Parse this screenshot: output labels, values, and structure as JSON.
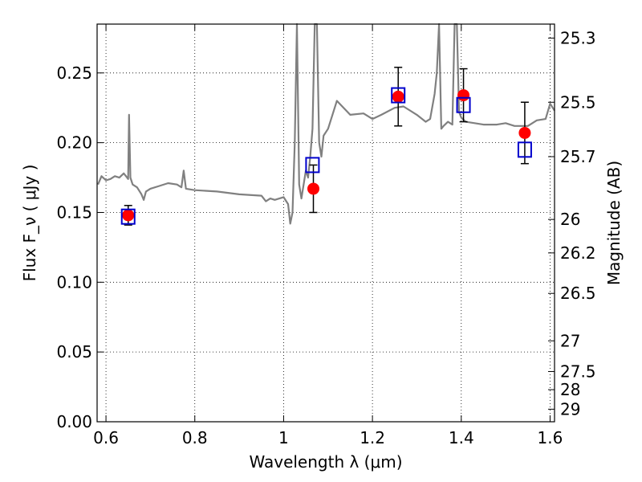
{
  "chart_data": {
    "type": "scatter",
    "title": "",
    "xlabel": "Wavelength  λ (μm)",
    "ylabel": "Flux  F_ν  ( μJy )",
    "ylabel_right": "Magnitude (AB)",
    "xlim": [
      0.58,
      1.61
    ],
    "ylim": [
      0.0,
      0.285
    ],
    "grid": true,
    "grid_style": "dotted",
    "x_ticks": [
      {
        "value": 0.6,
        "label": "0.6"
      },
      {
        "value": 0.8,
        "label": "0.8"
      },
      {
        "value": 1.0,
        "label": "1"
      },
      {
        "value": 1.2,
        "label": "1.2"
      },
      {
        "value": 1.4,
        "label": "1.4"
      },
      {
        "value": 1.6,
        "label": "1.6"
      }
    ],
    "y_ticks": [
      {
        "value": 0.0,
        "label": "0.00"
      },
      {
        "value": 0.05,
        "label": "0.05"
      },
      {
        "value": 0.1,
        "label": "0.10"
      },
      {
        "value": 0.15,
        "label": "0.15"
      },
      {
        "value": 0.2,
        "label": "0.20"
      },
      {
        "value": 0.25,
        "label": "0.25"
      }
    ],
    "y2_ticks": [
      {
        "flux": 0.275,
        "label": "25.3"
      },
      {
        "flux": 0.229,
        "label": "25.5"
      },
      {
        "flux": 0.19,
        "label": "25.7"
      },
      {
        "flux": 0.145,
        "label": "26"
      },
      {
        "flux": 0.121,
        "label": "26.2"
      },
      {
        "flux": 0.092,
        "label": "26.5"
      },
      {
        "flux": 0.058,
        "label": "27"
      },
      {
        "flux": 0.036,
        "label": "27.5"
      },
      {
        "flux": 0.023,
        "label": "28"
      },
      {
        "flux": 0.009,
        "label": "29"
      }
    ],
    "series": [
      {
        "type": "line",
        "color": "#808080",
        "x": [
          0.582,
          0.59,
          0.6,
          0.61,
          0.62,
          0.63,
          0.64,
          0.645,
          0.65,
          0.652,
          0.655,
          0.66,
          0.67,
          0.68,
          0.685,
          0.69,
          0.7,
          0.72,
          0.74,
          0.76,
          0.77,
          0.775,
          0.78,
          0.8,
          0.85,
          0.9,
          0.95,
          0.96,
          0.97,
          0.98,
          1.0,
          1.01,
          1.015,
          1.02,
          1.025,
          1.03,
          1.035,
          1.04,
          1.05,
          1.055,
          1.06,
          1.065,
          1.07,
          1.075,
          1.08,
          1.085,
          1.09,
          1.1,
          1.12,
          1.15,
          1.18,
          1.2,
          1.22,
          1.25,
          1.27,
          1.3,
          1.32,
          1.33,
          1.34,
          1.345,
          1.35,
          1.355,
          1.36,
          1.37,
          1.38,
          1.385,
          1.39,
          1.395,
          1.4,
          1.41,
          1.43,
          1.45,
          1.48,
          1.5,
          1.52,
          1.55,
          1.57,
          1.59,
          1.6,
          1.61
        ],
        "y": [
          0.17,
          0.176,
          0.173,
          0.174,
          0.176,
          0.175,
          0.178,
          0.176,
          0.174,
          0.22,
          0.175,
          0.17,
          0.168,
          0.163,
          0.159,
          0.165,
          0.167,
          0.169,
          0.171,
          0.17,
          0.168,
          0.18,
          0.167,
          0.166,
          0.165,
          0.163,
          0.162,
          0.158,
          0.16,
          0.159,
          0.161,
          0.156,
          0.142,
          0.15,
          0.2,
          0.29,
          0.17,
          0.16,
          0.18,
          0.175,
          0.19,
          0.21,
          0.29,
          0.29,
          0.2,
          0.19,
          0.205,
          0.21,
          0.23,
          0.22,
          0.221,
          0.217,
          0.22,
          0.225,
          0.226,
          0.22,
          0.215,
          0.217,
          0.235,
          0.25,
          0.29,
          0.21,
          0.212,
          0.215,
          0.213,
          0.29,
          0.29,
          0.222,
          0.218,
          0.215,
          0.214,
          0.213,
          0.213,
          0.214,
          0.212,
          0.212,
          0.216,
          0.217,
          0.228,
          0.223
        ]
      },
      {
        "name": "",
        "type": "scatter",
        "marker": "square",
        "color": "#0000cc",
        "x": [
          0.65,
          1.065,
          1.258,
          1.405,
          1.543
        ],
        "y": [
          0.147,
          0.184,
          0.234,
          0.227,
          0.195
        ]
      },
      {
        "name": "",
        "type": "scatter",
        "marker": "circle",
        "color": "#ff0000",
        "x": [
          0.65,
          1.067,
          1.258,
          1.405,
          1.543
        ],
        "y": [
          0.148,
          0.167,
          0.233,
          0.234,
          0.207
        ],
        "yerr": [
          0.007,
          0.017,
          0.021,
          0.019,
          0.022
        ]
      }
    ]
  }
}
